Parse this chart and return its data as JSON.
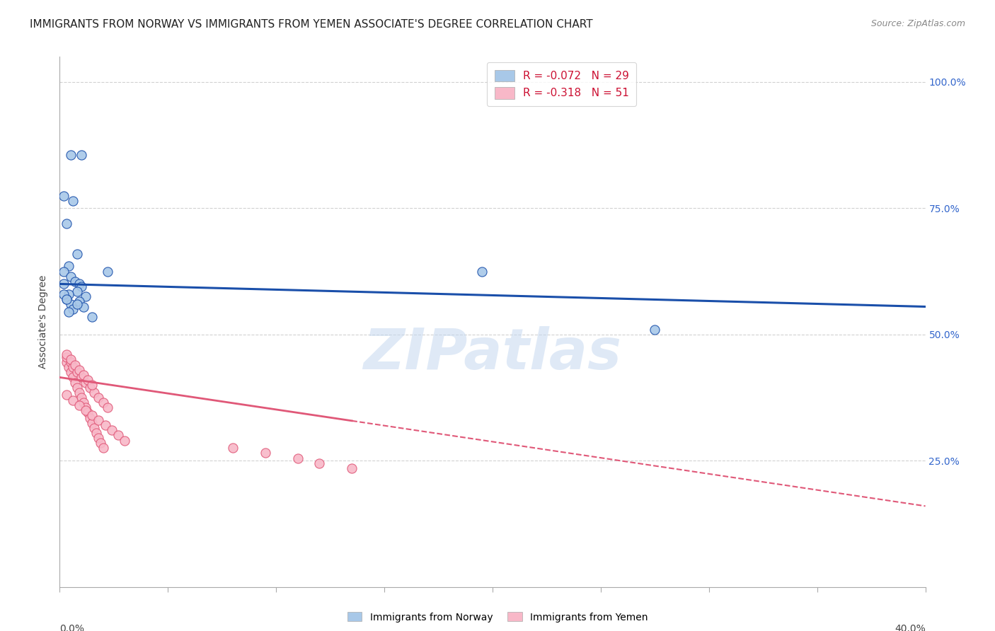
{
  "title": "IMMIGRANTS FROM NORWAY VS IMMIGRANTS FROM YEMEN ASSOCIATE'S DEGREE CORRELATION CHART",
  "source": "Source: ZipAtlas.com",
  "ylabel": "Associate's Degree",
  "right_yticks": [
    "100.0%",
    "75.0%",
    "50.0%",
    "25.0%"
  ],
  "right_ytick_vals": [
    1.0,
    0.75,
    0.5,
    0.25
  ],
  "xlim": [
    0.0,
    0.4
  ],
  "ylim": [
    0.0,
    1.05
  ],
  "norway_color": "#a8c8e8",
  "norway_line_color": "#1a4faa",
  "yemen_color": "#f8b8c8",
  "yemen_line_color": "#e05878",
  "norway_R": -0.072,
  "norway_N": 29,
  "yemen_R": -0.318,
  "yemen_N": 51,
  "watermark": "ZIPatlas",
  "norway_scatter_x": [
    0.005,
    0.01,
    0.002,
    0.006,
    0.003,
    0.008,
    0.004,
    0.002,
    0.005,
    0.007,
    0.009,
    0.01,
    0.008,
    0.012,
    0.009,
    0.011,
    0.015,
    0.022,
    0.004,
    0.003,
    0.005,
    0.006,
    0.004,
    0.002,
    0.002,
    0.195,
    0.275,
    0.003,
    0.008
  ],
  "norway_scatter_y": [
    0.855,
    0.855,
    0.775,
    0.765,
    0.72,
    0.66,
    0.635,
    0.625,
    0.615,
    0.605,
    0.6,
    0.595,
    0.585,
    0.575,
    0.565,
    0.555,
    0.535,
    0.625,
    0.58,
    0.57,
    0.56,
    0.55,
    0.545,
    0.58,
    0.6,
    0.625,
    0.51,
    0.57,
    0.56
  ],
  "yemen_scatter_x": [
    0.003,
    0.004,
    0.005,
    0.006,
    0.007,
    0.008,
    0.009,
    0.01,
    0.011,
    0.012,
    0.013,
    0.014,
    0.015,
    0.016,
    0.017,
    0.018,
    0.019,
    0.02,
    0.003,
    0.005,
    0.006,
    0.008,
    0.01,
    0.012,
    0.014,
    0.016,
    0.018,
    0.02,
    0.022,
    0.003,
    0.005,
    0.007,
    0.009,
    0.011,
    0.013,
    0.015,
    0.08,
    0.095,
    0.11,
    0.12,
    0.135,
    0.003,
    0.006,
    0.009,
    0.012,
    0.015,
    0.018,
    0.021,
    0.024,
    0.027,
    0.03
  ],
  "yemen_scatter_y": [
    0.445,
    0.435,
    0.425,
    0.415,
    0.405,
    0.395,
    0.385,
    0.375,
    0.365,
    0.355,
    0.345,
    0.335,
    0.325,
    0.315,
    0.305,
    0.295,
    0.285,
    0.275,
    0.455,
    0.445,
    0.435,
    0.425,
    0.415,
    0.405,
    0.395,
    0.385,
    0.375,
    0.365,
    0.355,
    0.46,
    0.45,
    0.44,
    0.43,
    0.42,
    0.41,
    0.4,
    0.275,
    0.265,
    0.255,
    0.245,
    0.235,
    0.38,
    0.37,
    0.36,
    0.35,
    0.34,
    0.33,
    0.32,
    0.31,
    0.3,
    0.29
  ],
  "background_color": "#ffffff",
  "grid_color": "#cccccc",
  "title_fontsize": 11,
  "axis_label_fontsize": 10,
  "tick_fontsize": 10,
  "legend_fontsize": 11
}
